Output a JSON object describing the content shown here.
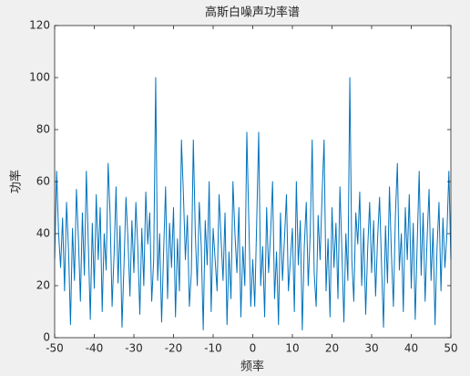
{
  "chart_data": {
    "type": "line",
    "title": "高斯白噪声功率谱",
    "x_label": "频率",
    "y_label": "功率",
    "color": "#0072bd",
    "xlim": [
      -50,
      50
    ],
    "ylim": [
      0,
      120
    ],
    "xticks": [
      -50,
      -40,
      -30,
      -20,
      -10,
      0,
      10,
      20,
      30,
      40,
      50
    ],
    "yticks": [
      0,
      20,
      40,
      60,
      80,
      100,
      120
    ],
    "x": [
      -50,
      -49.5,
      -49,
      -48.5,
      -48,
      -47.5,
      -47,
      -46.5,
      -46,
      -45.5,
      -45,
      -44.5,
      -44,
      -43.5,
      -43,
      -42.5,
      -42,
      -41.5,
      -41,
      -40.5,
      -40,
      -39.5,
      -39,
      -38.5,
      -38,
      -37.5,
      -37,
      -36.5,
      -36,
      -35.5,
      -35,
      -34.5,
      -34,
      -33.5,
      -33,
      -32.5,
      -32,
      -31.5,
      -31,
      -30.5,
      -30,
      -29.5,
      -29,
      -28.5,
      -28,
      -27.5,
      -27,
      -26.5,
      -26,
      -25.5,
      -25,
      -24.5,
      -24,
      -23.5,
      -23,
      -22.5,
      -22,
      -21.5,
      -21,
      -20.5,
      -20,
      -19.5,
      -19,
      -18.5,
      -18,
      -17.5,
      -17,
      -16.5,
      -16,
      -15.5,
      -15,
      -14.5,
      -14,
      -13.5,
      -13,
      -12.5,
      -12,
      -11.5,
      -11,
      -10.5,
      -10,
      -9.5,
      -9,
      -8.5,
      -8,
      -7.5,
      -7,
      -6.5,
      -6,
      -5.5,
      -5,
      -4.5,
      -4,
      -3.5,
      -3,
      -2.5,
      -2,
      -1.5,
      -1,
      -0.5,
      0,
      0.5,
      1,
      1.5,
      2,
      2.5,
      3,
      3.5,
      4,
      4.5,
      5,
      5.5,
      6,
      6.5,
      7,
      7.5,
      8,
      8.5,
      9,
      9.5,
      10,
      10.5,
      11,
      11.5,
      12,
      12.5,
      13,
      13.5,
      14,
      14.5,
      15,
      15.5,
      16,
      16.5,
      17,
      17.5,
      18,
      18.5,
      19,
      19.5,
      20,
      20.5,
      21,
      21.5,
      22,
      22.5,
      23,
      23.5,
      24,
      24.5,
      25,
      25.5,
      26,
      26.5,
      27,
      27.5,
      28,
      28.5,
      29,
      29.5,
      30,
      30.5,
      31,
      31.5,
      32,
      32.5,
      33,
      33.5,
      34,
      34.5,
      35,
      35.5,
      36,
      36.5,
      37,
      37.5,
      38,
      38.5,
      39,
      39.5,
      40,
      40.5,
      41,
      41.5,
      42,
      42.5,
      43,
      43.5,
      44,
      44.5,
      45,
      45.5,
      46,
      46.5,
      47,
      47.5,
      48,
      48.5,
      49,
      49.5,
      50
    ],
    "values": [
      30,
      64,
      40,
      27,
      46,
      18,
      52,
      34,
      5,
      42,
      22,
      57,
      38,
      14,
      48,
      24,
      64,
      36,
      7,
      44,
      19,
      55,
      30,
      50,
      10,
      40,
      26,
      67,
      47,
      12,
      32,
      58,
      21,
      43,
      4,
      28,
      54,
      38,
      16,
      45,
      25,
      52,
      34,
      9,
      42,
      20,
      56,
      36,
      48,
      14,
      30,
      100,
      22,
      40,
      6,
      33,
      58,
      15,
      44,
      27,
      50,
      8,
      38,
      18,
      76,
      55,
      30,
      47,
      12,
      25,
      76,
      40,
      20,
      52,
      35,
      3,
      45,
      28,
      60,
      10,
      42,
      30,
      18,
      55,
      38,
      22,
      48,
      5,
      33,
      15,
      60,
      40,
      25,
      50,
      8,
      35,
      20,
      79,
      45,
      12,
      30,
      12,
      45,
      79,
      20,
      35,
      8,
      50,
      25,
      40,
      60,
      15,
      33,
      5,
      48,
      22,
      38,
      55,
      18,
      30,
      42,
      10,
      60,
      28,
      45,
      3,
      35,
      52,
      20,
      40,
      76,
      25,
      12,
      47,
      30,
      55,
      76,
      18,
      38,
      8,
      50,
      27,
      44,
      15,
      58,
      33,
      6,
      40,
      22,
      100,
      30,
      14,
      48,
      36,
      56,
      20,
      42,
      9,
      34,
      52,
      25,
      45,
      16,
      38,
      54,
      28,
      4,
      43,
      21,
      58,
      32,
      12,
      47,
      67,
      26,
      40,
      10,
      50,
      30,
      55,
      19,
      44,
      7,
      36,
      64,
      24,
      48,
      14,
      38,
      57,
      22,
      42,
      5,
      34,
      52,
      18,
      46,
      27,
      40,
      64,
      30
    ]
  }
}
